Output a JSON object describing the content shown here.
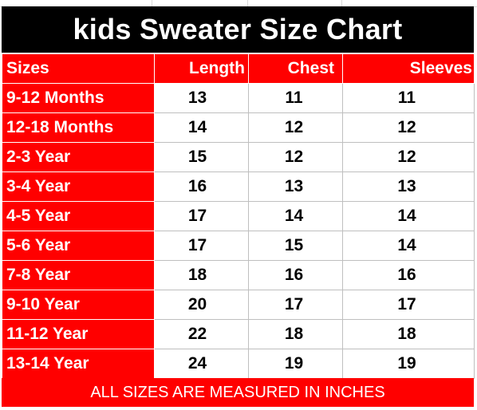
{
  "title": "kids Sweater Size Chart",
  "headers": {
    "size": "Sizes",
    "length": "Length",
    "chest": "Chest",
    "sleeves": "Sleeves"
  },
  "rows": [
    {
      "size": "9-12 Months",
      "length": "13",
      "chest": "11",
      "sleeves": "11"
    },
    {
      "size": "12-18 Months",
      "length": "14",
      "chest": "12",
      "sleeves": "12"
    },
    {
      "size": "2-3 Year",
      "length": "15",
      "chest": "12",
      "sleeves": "12"
    },
    {
      "size": "3-4 Year",
      "length": "16",
      "chest": "13",
      "sleeves": "13"
    },
    {
      "size": "4-5 Year",
      "length": "17",
      "chest": "14",
      "sleeves": "14"
    },
    {
      "size": "5-6 Year",
      "length": "17",
      "chest": "15",
      "sleeves": "14"
    },
    {
      "size": "7-8 Year",
      "length": "18",
      "chest": "16",
      "sleeves": "16"
    },
    {
      "size": "9-10 Year",
      "length": "20",
      "chest": "17",
      "sleeves": "17"
    },
    {
      "size": "11-12 Year",
      "length": "22",
      "chest": "18",
      "sleeves": "18"
    },
    {
      "size": "13-14 Year",
      "length": "24",
      "chest": "19",
      "sleeves": "19"
    }
  ],
  "footer": "ALL SIZES ARE MEASURED IN INCHES",
  "colors": {
    "title_background": "#000000",
    "accent_red": "#ff0000",
    "header_text": "#ffffff",
    "value_text": "#000000"
  }
}
